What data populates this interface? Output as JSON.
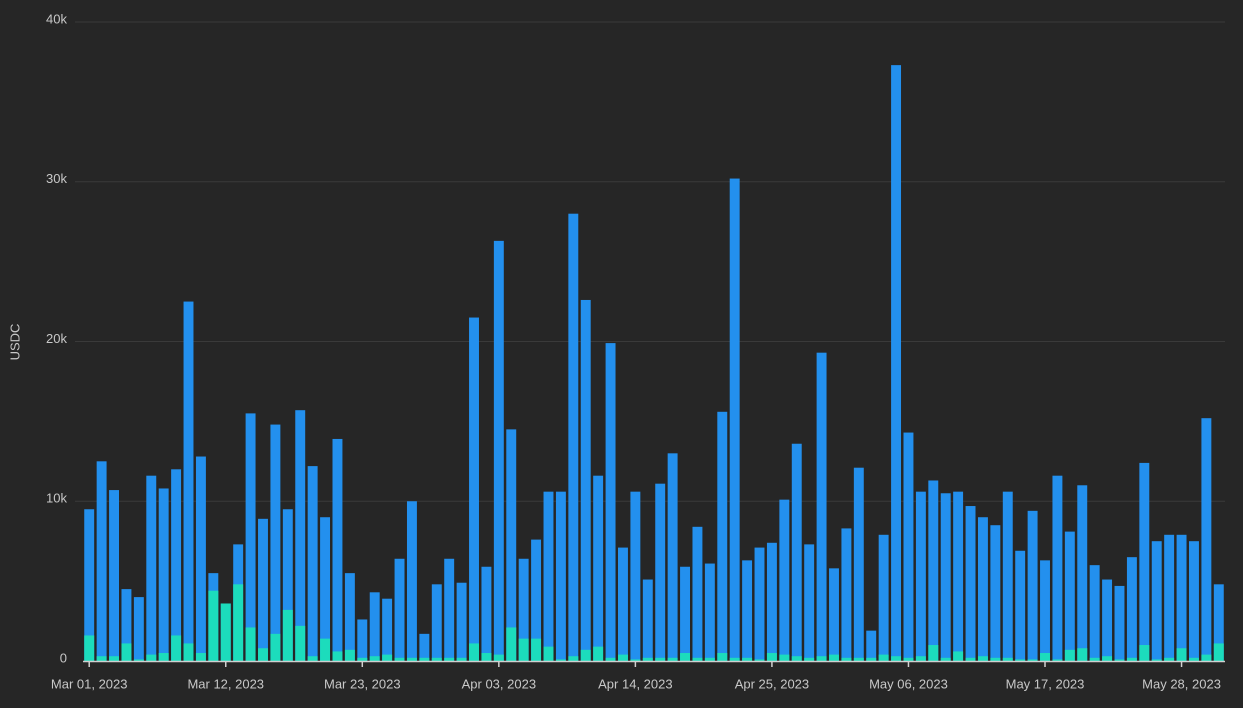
{
  "chart_data": {
    "type": "bar",
    "y_label": "USDC",
    "categories": [
      "Mar 01, 2023",
      null,
      null,
      null,
      null,
      null,
      null,
      null,
      null,
      null,
      null,
      "Mar 12, 2023",
      null,
      null,
      null,
      null,
      null,
      null,
      null,
      null,
      null,
      null,
      "Mar 23, 2023",
      null,
      null,
      null,
      null,
      null,
      null,
      null,
      null,
      null,
      null,
      "Apr 03, 2023",
      null,
      null,
      null,
      null,
      null,
      null,
      null,
      null,
      null,
      null,
      "Apr 14, 2023",
      null,
      null,
      null,
      null,
      null,
      null,
      null,
      null,
      null,
      null,
      "Apr 25, 2023",
      null,
      null,
      null,
      null,
      null,
      null,
      null,
      null,
      null,
      null,
      "May 06, 2023",
      null,
      null,
      null,
      null,
      null,
      null,
      null,
      null,
      null,
      null,
      "May 17, 2023",
      null,
      null,
      null,
      null,
      null,
      null,
      null,
      null,
      null,
      null,
      "May 28, 2023",
      null,
      null,
      null
    ],
    "series": [
      {
        "color": "#2390ee",
        "values": [
          9500,
          12500,
          10700,
          4500,
          4000,
          11600,
          10800,
          12000,
          22500,
          12800,
          5500,
          3600,
          7300,
          15500,
          8900,
          14800,
          9500,
          15700,
          12200,
          9000,
          13900,
          5500,
          2600,
          4300,
          3900,
          6400,
          10000,
          1700,
          4800,
          6400,
          4900,
          21500,
          5900,
          26300,
          14500,
          6400,
          7600,
          10600,
          10600,
          28000,
          22600,
          11600,
          19900,
          7100,
          10600,
          5100,
          11100,
          13000,
          5900,
          8400,
          6100,
          15600,
          30200,
          6300,
          7100,
          7400,
          10100,
          13600,
          7300,
          19300,
          5800,
          8300,
          12100,
          1900,
          7900,
          37300,
          14300,
          10600,
          11300,
          10500,
          10600,
          9700,
          9000,
          8500,
          10600,
          6900,
          9400,
          6300,
          11600,
          8100,
          11000,
          6000,
          5100,
          4700,
          6500,
          12400,
          7500,
          7900,
          7900,
          7500,
          15200,
          4800
        ]
      },
      {
        "color": "#1cdcbc",
        "values": [
          1600,
          300,
          300,
          1100,
          100,
          400,
          500,
          1600,
          1100,
          500,
          4400,
          3600,
          4800,
          2100,
          800,
          1700,
          3200,
          2200,
          300,
          1400,
          600,
          700,
          200,
          300,
          400,
          200,
          200,
          200,
          200,
          200,
          200,
          1100,
          500,
          400,
          2100,
          1400,
          1400,
          900,
          100,
          300,
          700,
          900,
          200,
          400,
          100,
          200,
          200,
          200,
          500,
          200,
          200,
          500,
          200,
          200,
          100,
          500,
          400,
          300,
          200,
          300,
          400,
          200,
          200,
          200,
          400,
          300,
          200,
          300,
          1000,
          200,
          600,
          200,
          300,
          200,
          200,
          100,
          100,
          500,
          100,
          700,
          800,
          200,
          300,
          100,
          200,
          1000,
          100,
          200,
          800,
          200,
          400,
          1100
        ]
      }
    ],
    "ylim": [
      0,
      40000
    ],
    "yticks": [
      0,
      {
        "value": 10000,
        "label": "10k"
      },
      {
        "value": 20000,
        "label": "20k"
      },
      {
        "value": 30000,
        "label": "30k"
      },
      {
        "value": 40000,
        "label": "40k"
      }
    ],
    "grid": true
  }
}
